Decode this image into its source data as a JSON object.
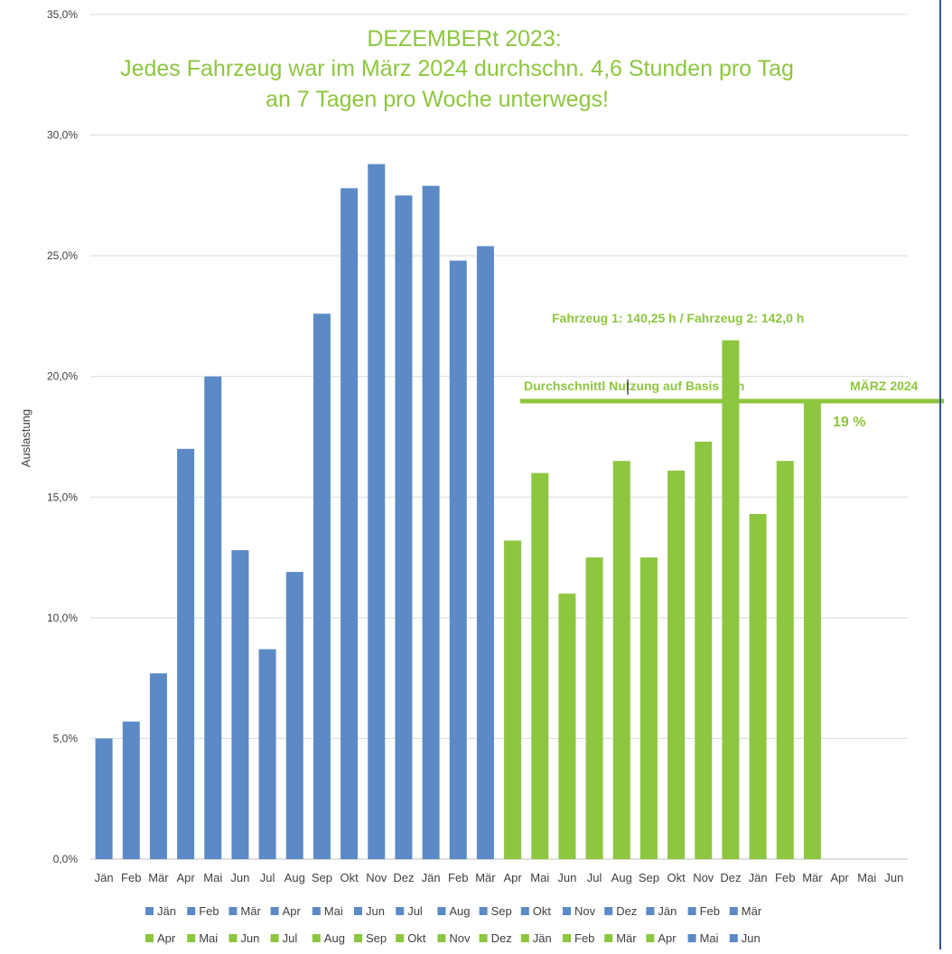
{
  "chart_data": {
    "type": "bar",
    "title_lines": [
      "DEZEMBERt 2023:",
      "Jedes Fahrzeug war im März 2024 durchschn. 4,6 Stunden pro Tag",
      "an 7 Tagen pro Woche unterwegs!"
    ],
    "ylabel": "Auslastung",
    "xlabel": "",
    "ylim": [
      0,
      35
    ],
    "yticks": [
      "0,0%",
      "5,0%",
      "10,0%",
      "15,0%",
      "20,0%",
      "25,0%",
      "30,0%",
      "35,0%"
    ],
    "grid": true,
    "categories": [
      "Jän",
      "Feb",
      "Mär",
      "Apr",
      "Mai",
      "Jun",
      "Jul",
      "Aug",
      "Sep",
      "Okt",
      "Nov",
      "Dez",
      "Jän",
      "Feb",
      "Mär",
      "Apr",
      "Mai",
      "Jun",
      "Jul",
      "Aug",
      "Sep",
      "Okt",
      "Nov",
      "Dez",
      "Jän",
      "Feb",
      "Mär",
      "Apr",
      "Mai",
      "Jun"
    ],
    "values": [
      5.0,
      5.7,
      7.7,
      17.0,
      20.0,
      12.8,
      8.7,
      11.9,
      22.6,
      27.8,
      28.8,
      27.5,
      27.9,
      24.8,
      25.4,
      13.2,
      16.0,
      11.0,
      12.5,
      16.5,
      12.5,
      16.1,
      17.3,
      21.5,
      14.3,
      16.5,
      19.0,
      null,
      null,
      null
    ],
    "bar_colors": [
      "#5b8ac6",
      "#5b8ac6",
      "#5b8ac6",
      "#5b8ac6",
      "#5b8ac6",
      "#5b8ac6",
      "#5b8ac6",
      "#5b8ac6",
      "#5b8ac6",
      "#5b8ac6",
      "#5b8ac6",
      "#5b8ac6",
      "#5b8ac6",
      "#5b8ac6",
      "#5b8ac6",
      "#8dc63f",
      "#8dc63f",
      "#8dc63f",
      "#8dc63f",
      "#8dc63f",
      "#8dc63f",
      "#8dc63f",
      "#8dc63f",
      "#8dc63f",
      "#8dc63f",
      "#8dc63f",
      "#8dc63f",
      "#8dc63f",
      "#5b8ac6",
      "#5b8ac6"
    ],
    "legend_rows": [
      [
        "Jän",
        "Feb",
        "Mär",
        "Apr",
        "Mai",
        "Jun",
        "Jul",
        "Aug",
        "Sep",
        "Okt",
        "Nov",
        "Dez",
        "Jän",
        "Feb",
        "Mär"
      ],
      [
        "Apr",
        "Mai",
        "Jun",
        "Jul",
        "Aug",
        "Sep",
        "Okt",
        "Nov",
        "Dez",
        "Jän",
        "Feb",
        "Mär",
        "Apr",
        "Mai",
        "Jun"
      ]
    ],
    "legend_position": "bottom",
    "annotations": {
      "vehicle_hours": "Fahrzeug 1: 140,25 h   / Fahrzeug 2:  142,0 h",
      "avg_label": "Durchschnittl Nutzung  auf  Basis 24h",
      "month_label": "MÄRZ 2024",
      "percent_label": "19 %",
      "avg_value": 19
    },
    "colors": {
      "blue": "#5b8ac6",
      "green": "#8dc63f",
      "title_green": "#8dc63f",
      "grid": "#d9d9d9",
      "axis_text": "#404040",
      "border": "#2f5597"
    }
  }
}
